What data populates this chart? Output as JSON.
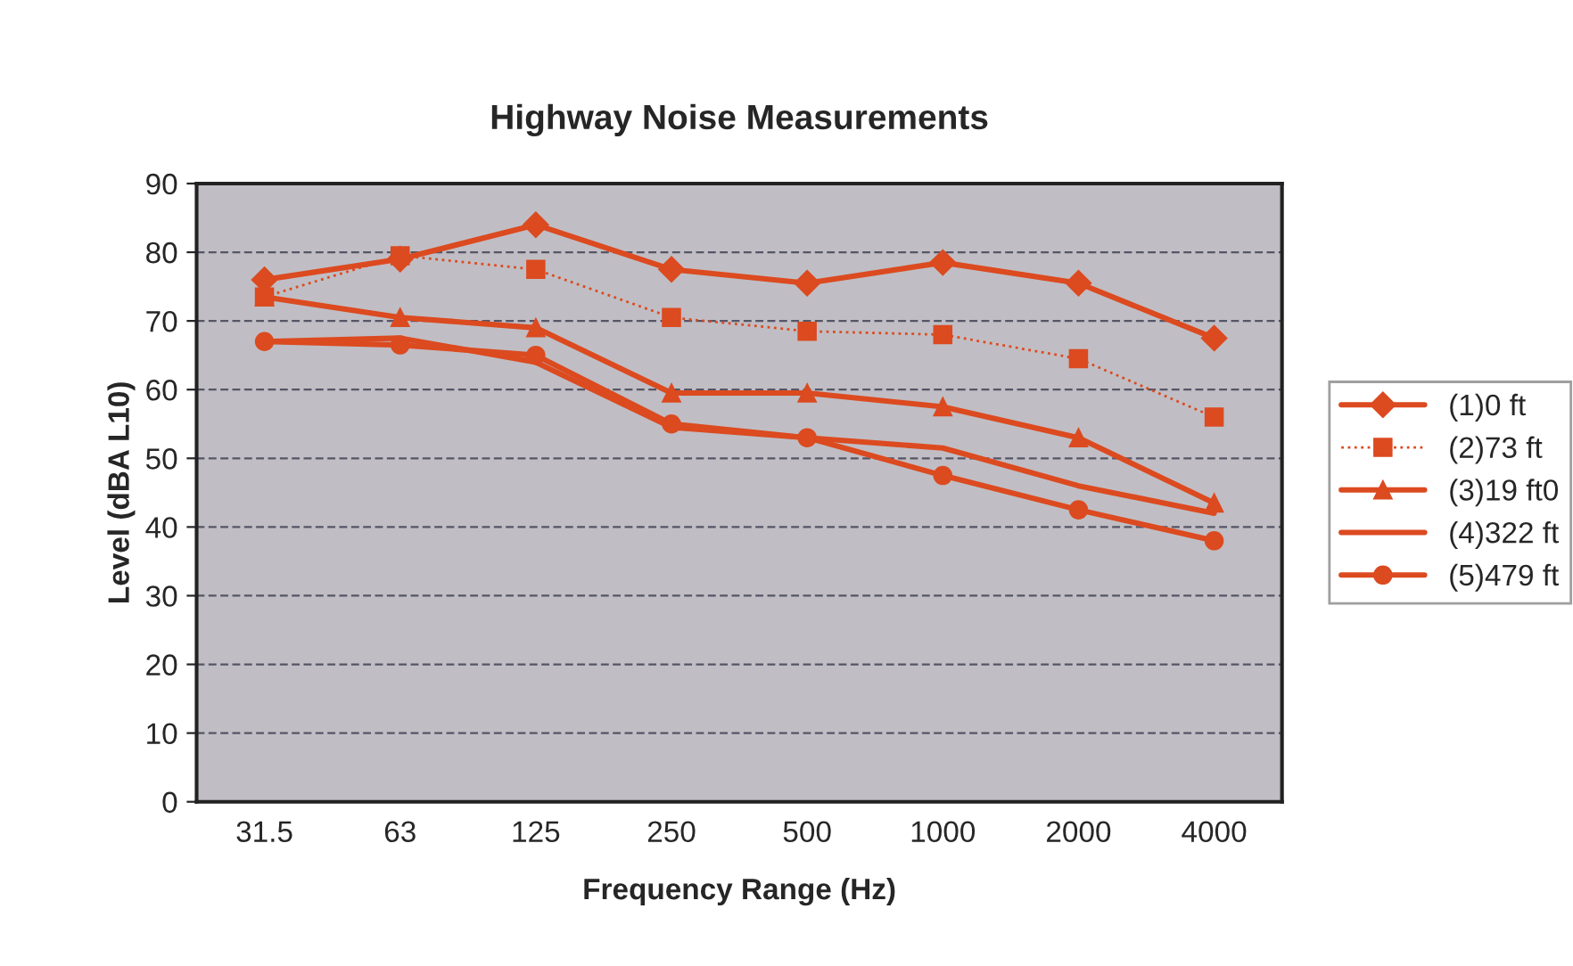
{
  "chart_data": {
    "type": "line",
    "title": "Highway Noise Measurements",
    "xlabel": "Frequency Range (Hz)",
    "ylabel": "Level (dBA L10)",
    "categories": [
      "31.5",
      "63",
      "125",
      "250",
      "500",
      "1000",
      "2000",
      "4000"
    ],
    "series": [
      {
        "name": "(1)0 ft",
        "color": "#dc4a20",
        "marker": "diamond",
        "line_style": "solid",
        "values": [
          76,
          79,
          84,
          77.5,
          75.5,
          78.5,
          75.5,
          67.5
        ]
      },
      {
        "name": "(2)73 ft",
        "color": "#dc4a20",
        "marker": "square",
        "line_style": "dotted",
        "values": [
          73.5,
          79.5,
          77.5,
          70.5,
          68.5,
          68,
          64.5,
          56
        ]
      },
      {
        "name": "(3)19 ft0",
        "color": "#dc4a20",
        "marker": "triangle",
        "line_style": "solid",
        "values": [
          73.5,
          70.5,
          69,
          59.5,
          59.5,
          57.5,
          53,
          43.5
        ]
      },
      {
        "name": "(4)322 ft",
        "color": "#dc4a20",
        "marker": "none",
        "line_style": "solid",
        "values": [
          67,
          67.5,
          64,
          54.5,
          53,
          51.5,
          46,
          42
        ]
      },
      {
        "name": "(5)479 ft",
        "color": "#dc4a20",
        "marker": "circle",
        "line_style": "solid",
        "values": [
          67,
          66.5,
          65,
          55,
          53,
          47.5,
          42.5,
          38
        ]
      }
    ],
    "ylim": [
      0,
      90
    ],
    "yticks": [
      0,
      10,
      20,
      30,
      40,
      50,
      60,
      70,
      80,
      90
    ],
    "grid": "y",
    "legend": "right"
  }
}
